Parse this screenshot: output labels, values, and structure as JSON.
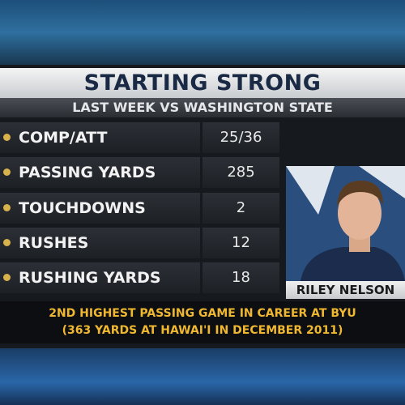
{
  "header": {
    "title": "STARTING STRONG",
    "subtitle": "LAST WEEK VS WASHINGTON STATE"
  },
  "table": {
    "rows": [
      [
        "COMP/ATT",
        "25/36"
      ],
      [
        "PASSING YARDS",
        285
      ],
      [
        "TOUCHDOWNS",
        2
      ],
      [
        "RUSHES",
        12
      ],
      [
        "RUSHING YARDS",
        18
      ]
    ]
  },
  "player": {
    "name": "RILEY NELSON"
  },
  "footnote": {
    "lines": [
      "2ND HIGHEST PASSING GAME IN CAREER AT BYU",
      "(363 YARDS AT HAWAI'I IN DECEMBER 2011)"
    ]
  }
}
